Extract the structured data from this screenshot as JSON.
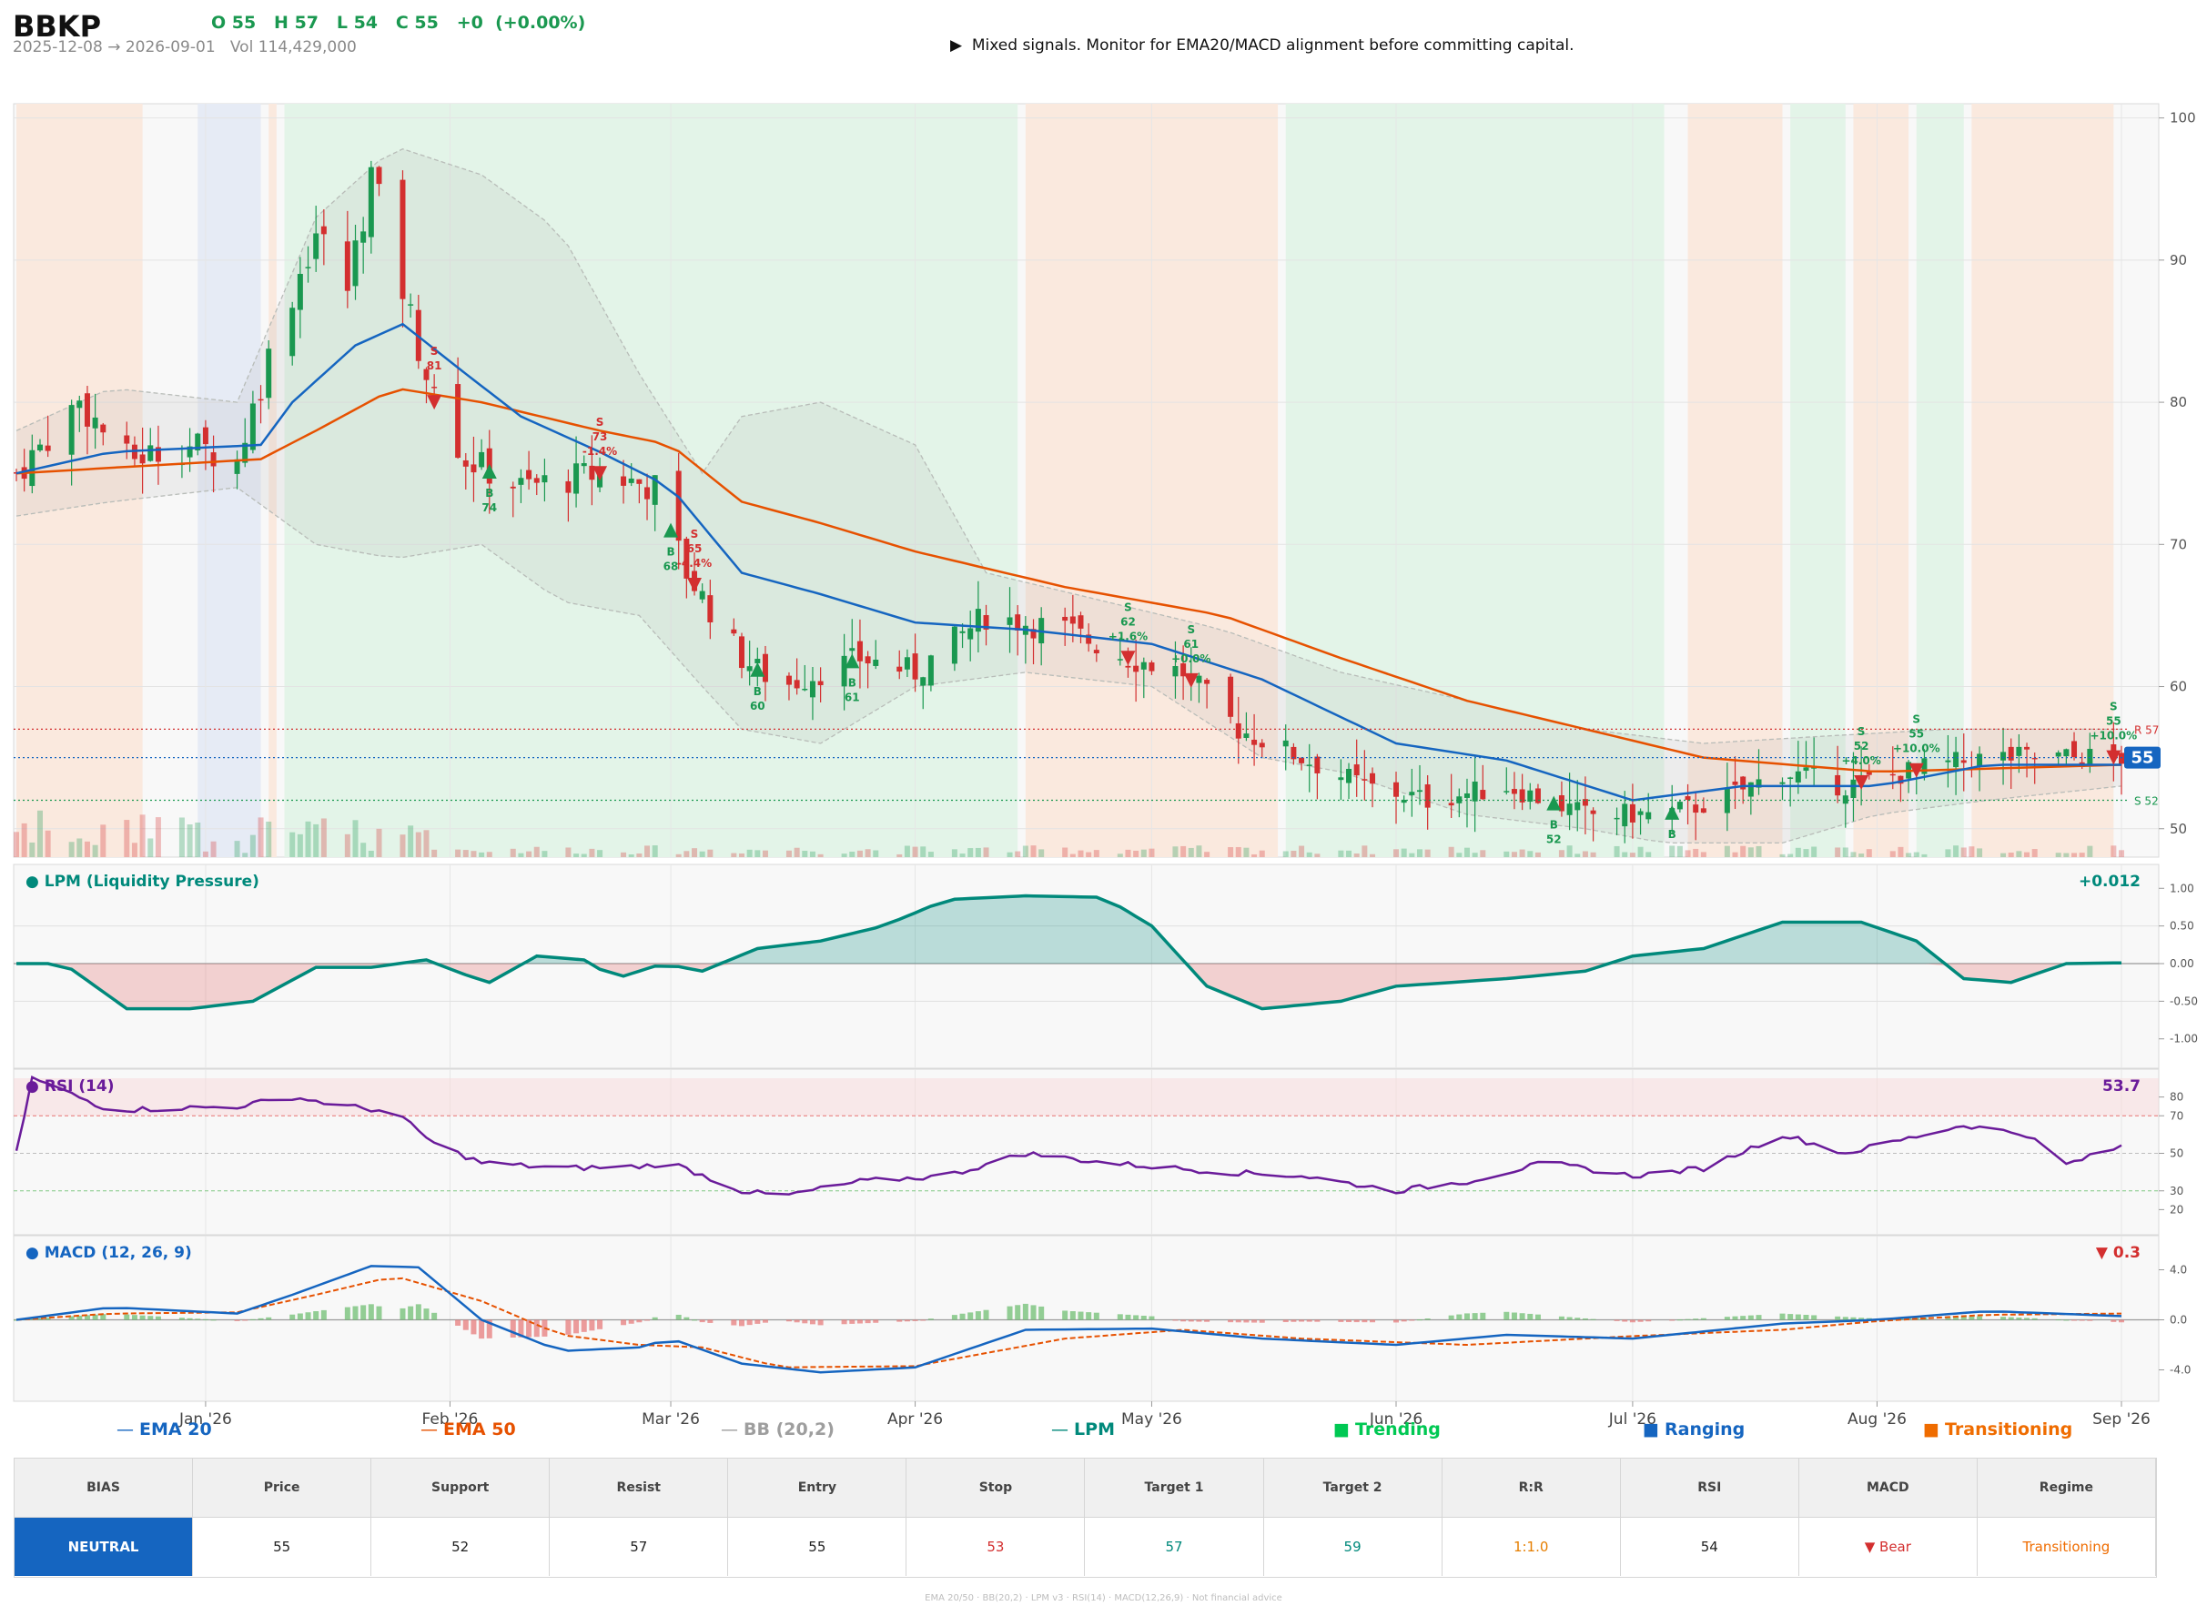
{
  "header": {
    "ticker": "BBKP",
    "ohlc": "O 55   H 57   L 54   C 55   +0  (+0.00%)",
    "range": "2025-12-08 → 2026-09-01   Vol 114,429,000",
    "signal": "▶  Mixed signals. Monitor for EMA20/MACD alignment before committing capital."
  },
  "colors": {
    "up": "#1a9850",
    "down": "#d32f2f",
    "ema20": "#1565c0",
    "ema50": "#e65100",
    "bb": "#9e9e9e",
    "lpm": "#00897b",
    "rsi": "#6a1b9a",
    "macd": "#1565c0",
    "signal": "#e65100",
    "trending": "#e3f4e8",
    "ranging": "#e6ebf5",
    "transitioning": "#fae9de"
  },
  "chart_data": {
    "type": "candlestick",
    "price_axis": {
      "ylim": [
        48,
        101
      ],
      "ticks": [
        50,
        60,
        70,
        80,
        90,
        100
      ]
    },
    "x_tick_labels": [
      "Jan '26",
      "Feb '26",
      "Mar '26",
      "Apr '26",
      "May '26",
      "Jun '26",
      "Jul '26",
      "Aug '26",
      "Sep '26"
    ],
    "x_tick_dates": [
      "2026-01-01",
      "2026-02-01",
      "2026-03-01",
      "2026-04-01",
      "2026-05-01",
      "2026-06-01",
      "2026-07-01",
      "2026-08-01",
      "2026-09-01"
    ],
    "date_range": [
      "2025-12-08",
      "2026-09-01"
    ],
    "last_price": "55",
    "levels": [
      {
        "label": "R 57",
        "value": 57,
        "color": "#d32f2f"
      },
      {
        "label": "55",
        "value": 55,
        "color": "#1565c0"
      },
      {
        "label": "S 52",
        "value": 52,
        "color": "#1a9850"
      }
    ],
    "regimes": [
      {
        "start": "2025-12-08",
        "end": "2025-12-24",
        "type": "transitioning"
      },
      {
        "start": "2025-12-31",
        "end": "2026-01-08",
        "type": "ranging"
      },
      {
        "start": "2026-01-09",
        "end": "2026-01-10",
        "type": "transitioning"
      },
      {
        "start": "2026-01-11",
        "end": "2026-04-14",
        "type": "trending"
      },
      {
        "start": "2026-04-15",
        "end": "2026-05-17",
        "type": "transitioning"
      },
      {
        "start": "2026-05-18",
        "end": "2026-07-05",
        "type": "trending"
      },
      {
        "start": "2026-07-08",
        "end": "2026-07-20",
        "type": "transitioning"
      },
      {
        "start": "2026-07-21",
        "end": "2026-07-28",
        "type": "trending"
      },
      {
        "start": "2026-07-29",
        "end": "2026-08-05",
        "type": "transitioning"
      },
      {
        "start": "2026-08-06",
        "end": "2026-08-12",
        "type": "trending"
      },
      {
        "start": "2026-08-13",
        "end": "2026-08-31",
        "type": "transitioning"
      }
    ],
    "ohlc_anchors": [
      [
        "2025-12-08",
        75
      ],
      [
        "2025-12-16",
        80
      ],
      [
        "2025-12-22",
        76
      ],
      [
        "2025-12-30",
        77
      ],
      [
        "2026-01-05",
        76
      ],
      [
        "2026-01-10",
        85
      ],
      [
        "2026-01-15",
        92
      ],
      [
        "2026-01-19",
        88
      ],
      [
        "2026-01-22",
        96
      ],
      [
        "2026-01-26",
        88
      ],
      [
        "2026-01-30",
        80
      ],
      [
        "2026-02-03",
        76
      ],
      [
        "2026-02-10",
        74
      ],
      [
        "2026-02-20",
        75
      ],
      [
        "2026-02-27",
        74
      ],
      [
        "2026-03-03",
        68
      ],
      [
        "2026-03-10",
        62
      ],
      [
        "2026-03-15",
        60
      ],
      [
        "2026-03-20",
        61
      ],
      [
        "2026-03-25",
        62
      ],
      [
        "2026-04-01",
        61
      ],
      [
        "2026-04-10",
        65
      ],
      [
        "2026-04-20",
        64
      ],
      [
        "2026-04-28",
        62
      ],
      [
        "2026-05-05",
        61
      ],
      [
        "2026-05-12",
        57
      ],
      [
        "2026-05-20",
        55
      ],
      [
        "2026-05-28",
        53
      ],
      [
        "2026-06-05",
        52
      ],
      [
        "2026-06-15",
        53
      ],
      [
        "2026-06-25",
        51
      ],
      [
        "2026-07-05",
        51
      ],
      [
        "2026-07-12",
        52
      ],
      [
        "2026-07-20",
        54
      ],
      [
        "2026-07-28",
        53
      ],
      [
        "2026-08-05",
        54
      ],
      [
        "2026-08-15",
        55
      ],
      [
        "2026-08-25",
        55
      ],
      [
        "2026-09-01",
        55
      ]
    ],
    "signals": [
      {
        "date": "2026-01-30",
        "side": "S",
        "score": "81",
        "change": ""
      },
      {
        "date": "2026-02-06",
        "side": "B",
        "score": "74",
        "change": ""
      },
      {
        "date": "2026-02-20",
        "side": "S",
        "score": "73",
        "change": "-1.4%"
      },
      {
        "date": "2026-03-01",
        "side": "B",
        "score": "68",
        "change": ""
      },
      {
        "date": "2026-03-04",
        "side": "S",
        "score": "65",
        "change": "-4.4%"
      },
      {
        "date": "2026-03-12",
        "side": "B",
        "score": "60",
        "change": ""
      },
      {
        "date": "2026-03-24",
        "side": "B",
        "score": "61",
        "change": ""
      },
      {
        "date": "2026-04-28",
        "side": "S",
        "score": "62",
        "change": "+1.6%"
      },
      {
        "date": "2026-05-06",
        "side": "S",
        "score": "61",
        "change": "+0.0%"
      },
      {
        "date": "2026-06-21",
        "side": "B",
        "score": "52",
        "change": ""
      },
      {
        "date": "2026-07-06",
        "side": "B",
        "score": "",
        "change": ""
      },
      {
        "date": "2026-07-30",
        "side": "S",
        "score": "52",
        "change": "+4.0%"
      },
      {
        "date": "2026-08-06",
        "side": "S",
        "score": "55",
        "change": "+10.0%"
      },
      {
        "date": "2026-08-31",
        "side": "S",
        "score": "55",
        "change": "+10.0%"
      }
    ],
    "ema20_anchors": [
      [
        "2025-12-08",
        75
      ],
      [
        "2025-12-20",
        76.5
      ],
      [
        "2026-01-08",
        77
      ],
      [
        "2026-01-12",
        80
      ],
      [
        "2026-01-20",
        84
      ],
      [
        "2026-01-26",
        85.5
      ],
      [
        "2026-02-03",
        82
      ],
      [
        "2026-02-10",
        79
      ],
      [
        "2026-02-20",
        76.5
      ],
      [
        "2026-03-01",
        74
      ],
      [
        "2026-03-10",
        68
      ],
      [
        "2026-03-20",
        66.5
      ],
      [
        "2026-04-01",
        64.5
      ],
      [
        "2026-04-15",
        64
      ],
      [
        "2026-05-01",
        63
      ],
      [
        "2026-05-15",
        60.5
      ],
      [
        "2026-06-01",
        56
      ],
      [
        "2026-06-15",
        54.8
      ],
      [
        "2026-07-01",
        52
      ],
      [
        "2026-07-15",
        53
      ],
      [
        "2026-08-01",
        53
      ],
      [
        "2026-08-15",
        54.5
      ],
      [
        "2026-09-01",
        54.5
      ]
    ],
    "ema50_anchors": [
      [
        "2025-12-08",
        75
      ],
      [
        "2026-01-08",
        76
      ],
      [
        "2026-01-15",
        78
      ],
      [
        "2026-01-25",
        81
      ],
      [
        "2026-02-05",
        80
      ],
      [
        "2026-02-20",
        78
      ],
      [
        "2026-03-01",
        77
      ],
      [
        "2026-03-10",
        73
      ],
      [
        "2026-03-20",
        71.5
      ],
      [
        "2026-04-01",
        69.5
      ],
      [
        "2026-04-20",
        67
      ],
      [
        "2026-05-10",
        65
      ],
      [
        "2026-05-25",
        62
      ],
      [
        "2026-06-10",
        59
      ],
      [
        "2026-06-25",
        57
      ],
      [
        "2026-07-10",
        55
      ],
      [
        "2026-08-01",
        54
      ],
      [
        "2026-09-01",
        54.5
      ]
    ],
    "bb_upper_anchors": [
      [
        "2025-12-08",
        78
      ],
      [
        "2025-12-20",
        81
      ],
      [
        "2026-01-05",
        80
      ],
      [
        "2026-01-15",
        93
      ],
      [
        "2026-01-25",
        98
      ],
      [
        "2026-02-05",
        96
      ],
      [
        "2026-02-15",
        92
      ],
      [
        "2026-02-25",
        82
      ],
      [
        "2026-03-05",
        75
      ],
      [
        "2026-03-10",
        79
      ],
      [
        "2026-03-20",
        80
      ],
      [
        "2026-04-01",
        77
      ],
      [
        "2026-04-10",
        68
      ],
      [
        "2026-04-25",
        66
      ],
      [
        "2026-05-10",
        64
      ],
      [
        "2026-05-25",
        61
      ],
      [
        "2026-06-10",
        59
      ],
      [
        "2026-06-25",
        57
      ],
      [
        "2026-07-10",
        56
      ],
      [
        "2026-07-25",
        56.5
      ],
      [
        "2026-08-10",
        57
      ],
      [
        "2026-09-01",
        57
      ]
    ],
    "bb_lower_anchors": [
      [
        "2025-12-08",
        72
      ],
      [
        "2025-12-20",
        73
      ],
      [
        "2026-01-05",
        74
      ],
      [
        "2026-01-15",
        70
      ],
      [
        "2026-01-25",
        69
      ],
      [
        "2026-02-05",
        70
      ],
      [
        "2026-02-15",
        66
      ],
      [
        "2026-02-25",
        65
      ],
      [
        "2026-03-05",
        60
      ],
      [
        "2026-03-10",
        57
      ],
      [
        "2026-03-20",
        56
      ],
      [
        "2026-04-01",
        60
      ],
      [
        "2026-04-15",
        61
      ],
      [
        "2026-05-01",
        60
      ],
      [
        "2026-05-15",
        55
      ],
      [
        "2026-05-25",
        54
      ],
      [
        "2026-06-10",
        51
      ],
      [
        "2026-06-25",
        50
      ],
      [
        "2026-07-05",
        49
      ],
      [
        "2026-07-20",
        49
      ],
      [
        "2026-08-01",
        51
      ],
      [
        "2026-08-15",
        52
      ],
      [
        "2026-09-01",
        53
      ]
    ],
    "lpm": {
      "title": "● LPM (Liquidity Pressure)",
      "value": "+0.012",
      "ticks": [
        "1.00",
        "0.50",
        "0.00",
        "-0.50",
        "-1.00"
      ],
      "anchors": [
        [
          "2025-12-08",
          0
        ],
        [
          "2025-12-14",
          0
        ],
        [
          "2025-12-18",
          -0.3
        ],
        [
          "2025-12-22",
          -0.6
        ],
        [
          "2025-12-30",
          -0.6
        ],
        [
          "2026-01-07",
          -0.5
        ],
        [
          "2026-01-15",
          -0.05
        ],
        [
          "2026-01-22",
          -0.05
        ],
        [
          "2026-01-29",
          0.05
        ],
        [
          "2026-02-03",
          -0.15
        ],
        [
          "2026-02-06",
          -0.25
        ],
        [
          "2026-02-12",
          0.1
        ],
        [
          "2026-02-18",
          0.05
        ],
        [
          "2026-02-22",
          -0.2
        ],
        [
          "2026-02-28",
          0
        ],
        [
          "2026-03-05",
          -0.1
        ],
        [
          "2026-03-12",
          0.2
        ],
        [
          "2026-03-20",
          0.3
        ],
        [
          "2026-03-28",
          0.5
        ],
        [
          "2026-04-05",
          0.85
        ],
        [
          "2026-04-15",
          0.9
        ],
        [
          "2026-04-25",
          0.88
        ],
        [
          "2026-05-01",
          0.5
        ],
        [
          "2026-05-08",
          -0.3
        ],
        [
          "2026-05-15",
          -0.6
        ],
        [
          "2026-05-25",
          -0.5
        ],
        [
          "2026-06-01",
          -0.3
        ],
        [
          "2026-06-15",
          -0.2
        ],
        [
          "2026-06-25",
          -0.1
        ],
        [
          "2026-07-01",
          0.1
        ],
        [
          "2026-07-10",
          0.2
        ],
        [
          "2026-07-20",
          0.55
        ],
        [
          "2026-07-30",
          0.55
        ],
        [
          "2026-08-06",
          0.3
        ],
        [
          "2026-08-12",
          -0.2
        ],
        [
          "2026-08-18",
          -0.25
        ],
        [
          "2026-08-25",
          0
        ],
        [
          "2026-09-01",
          0.01
        ]
      ]
    },
    "rsi": {
      "title": "● RSI (14)",
      "value": "53.7",
      "ticks": [
        "80",
        "70",
        "50",
        "30",
        "20"
      ],
      "anchors": [
        [
          "2025-12-08",
          50
        ],
        [
          "2025-12-10",
          90
        ],
        [
          "2025-12-20",
          73
        ],
        [
          "2026-01-05",
          75
        ],
        [
          "2026-01-12",
          80
        ],
        [
          "2026-01-19",
          75
        ],
        [
          "2026-01-25",
          72
        ],
        [
          "2026-01-30",
          55
        ],
        [
          "2026-02-05",
          45
        ],
        [
          "2026-02-15",
          42
        ],
        [
          "2026-02-25",
          43
        ],
        [
          "2026-03-01",
          45
        ],
        [
          "2026-03-10",
          30
        ],
        [
          "2026-03-15",
          27
        ],
        [
          "2026-03-25",
          35
        ],
        [
          "2026-04-05",
          38
        ],
        [
          "2026-04-15",
          50
        ],
        [
          "2026-04-25",
          45
        ],
        [
          "2026-05-10",
          40
        ],
        [
          "2026-05-20",
          38
        ],
        [
          "2026-06-01",
          30
        ],
        [
          "2026-06-10",
          35
        ],
        [
          "2026-06-20",
          45
        ],
        [
          "2026-07-01",
          38
        ],
        [
          "2026-07-10",
          42
        ],
        [
          "2026-07-20",
          60
        ],
        [
          "2026-07-28",
          50
        ],
        [
          "2026-08-05",
          58
        ],
        [
          "2026-08-12",
          65
        ],
        [
          "2026-08-20",
          60
        ],
        [
          "2026-08-25",
          44
        ],
        [
          "2026-09-01",
          53.7
        ]
      ]
    },
    "macd": {
      "title": "● MACD (12, 26, 9)",
      "value": "▼ 0.3",
      "ticks": [
        "4.0",
        "0.0",
        "-4.0"
      ],
      "macd_anchors": [
        [
          "2025-12-08",
          0
        ],
        [
          "2025-12-20",
          1
        ],
        [
          "2026-01-05",
          0.5
        ],
        [
          "2026-01-12",
          2
        ],
        [
          "2026-01-22",
          4.3
        ],
        [
          "2026-01-28",
          4.2
        ],
        [
          "2026-02-05",
          0
        ],
        [
          "2026-02-15",
          -2.5
        ],
        [
          "2026-02-25",
          -2.2
        ],
        [
          "2026-03-01",
          -1.5
        ],
        [
          "2026-03-10",
          -3.5
        ],
        [
          "2026-03-20",
          -4.2
        ],
        [
          "2026-04-01",
          -3.8
        ],
        [
          "2026-04-15",
          -0.8
        ],
        [
          "2026-05-01",
          -0.7
        ],
        [
          "2026-05-15",
          -1.5
        ],
        [
          "2026-06-01",
          -2
        ],
        [
          "2026-06-15",
          -1.2
        ],
        [
          "2026-07-01",
          -1.5
        ],
        [
          "2026-07-20",
          -0.3
        ],
        [
          "2026-08-01",
          0
        ],
        [
          "2026-08-15",
          0.7
        ],
        [
          "2026-09-01",
          0.3
        ]
      ],
      "signal_anchors": [
        [
          "2025-12-08",
          0
        ],
        [
          "2025-12-20",
          0.5
        ],
        [
          "2026-01-05",
          0.6
        ],
        [
          "2026-01-15",
          2
        ],
        [
          "2026-01-25",
          3.5
        ],
        [
          "2026-02-05",
          1.5
        ],
        [
          "2026-02-15",
          -1.2
        ],
        [
          "2026-02-25",
          -2
        ],
        [
          "2026-03-05",
          -2.2
        ],
        [
          "2026-03-15",
          -3.8
        ],
        [
          "2026-04-01",
          -3.7
        ],
        [
          "2026-04-20",
          -1.5
        ],
        [
          "2026-05-05",
          -0.8
        ],
        [
          "2026-05-20",
          -1.5
        ],
        [
          "2026-06-10",
          -2
        ],
        [
          "2026-07-01",
          -1.3
        ],
        [
          "2026-07-20",
          -0.8
        ],
        [
          "2026-08-01",
          -0.1
        ],
        [
          "2026-08-15",
          0.4
        ],
        [
          "2026-09-01",
          0.5
        ]
      ]
    }
  },
  "legend": [
    {
      "label": "EMA 20",
      "color": "#1565c0",
      "marker": "line"
    },
    {
      "label": "EMA 50",
      "color": "#e65100",
      "marker": "line"
    },
    {
      "label": "BB (20,2)",
      "color": "#9e9e9e",
      "marker": "line"
    },
    {
      "label": "LPM",
      "color": "#00897b",
      "marker": "line"
    },
    {
      "label": "Trending",
      "color": "#00c853",
      "marker": "square"
    },
    {
      "label": "Ranging",
      "color": "#1565c0",
      "marker": "square"
    },
    {
      "label": "Transitioning",
      "color": "#ef6c00",
      "marker": "square"
    }
  ],
  "table": {
    "headers": [
      "BIAS",
      "Price",
      "Support",
      "Resist",
      "Entry",
      "Stop",
      "Target 1",
      "Target 2",
      "R:R",
      "RSI",
      "MACD",
      "Regime"
    ],
    "values": [
      "NEUTRAL",
      "55",
      "52",
      "57",
      "55",
      "53",
      "57",
      "59",
      "1:1.0",
      "54",
      "▼ Bear",
      "Transitioning"
    ],
    "value_colors": [
      "#ffffff",
      "#222222",
      "#222222",
      "#222222",
      "#222222",
      "#d32f2f",
      "#00897b",
      "#00897b",
      "#e67e00",
      "#222222",
      "#d32f2f",
      "#ef6c00"
    ]
  },
  "footer": "EMA 20/50  ·  BB(20,2)  ·  LPM v3  ·  RSI(14)  ·  MACD(12,26,9)  ·  Not financial advice"
}
